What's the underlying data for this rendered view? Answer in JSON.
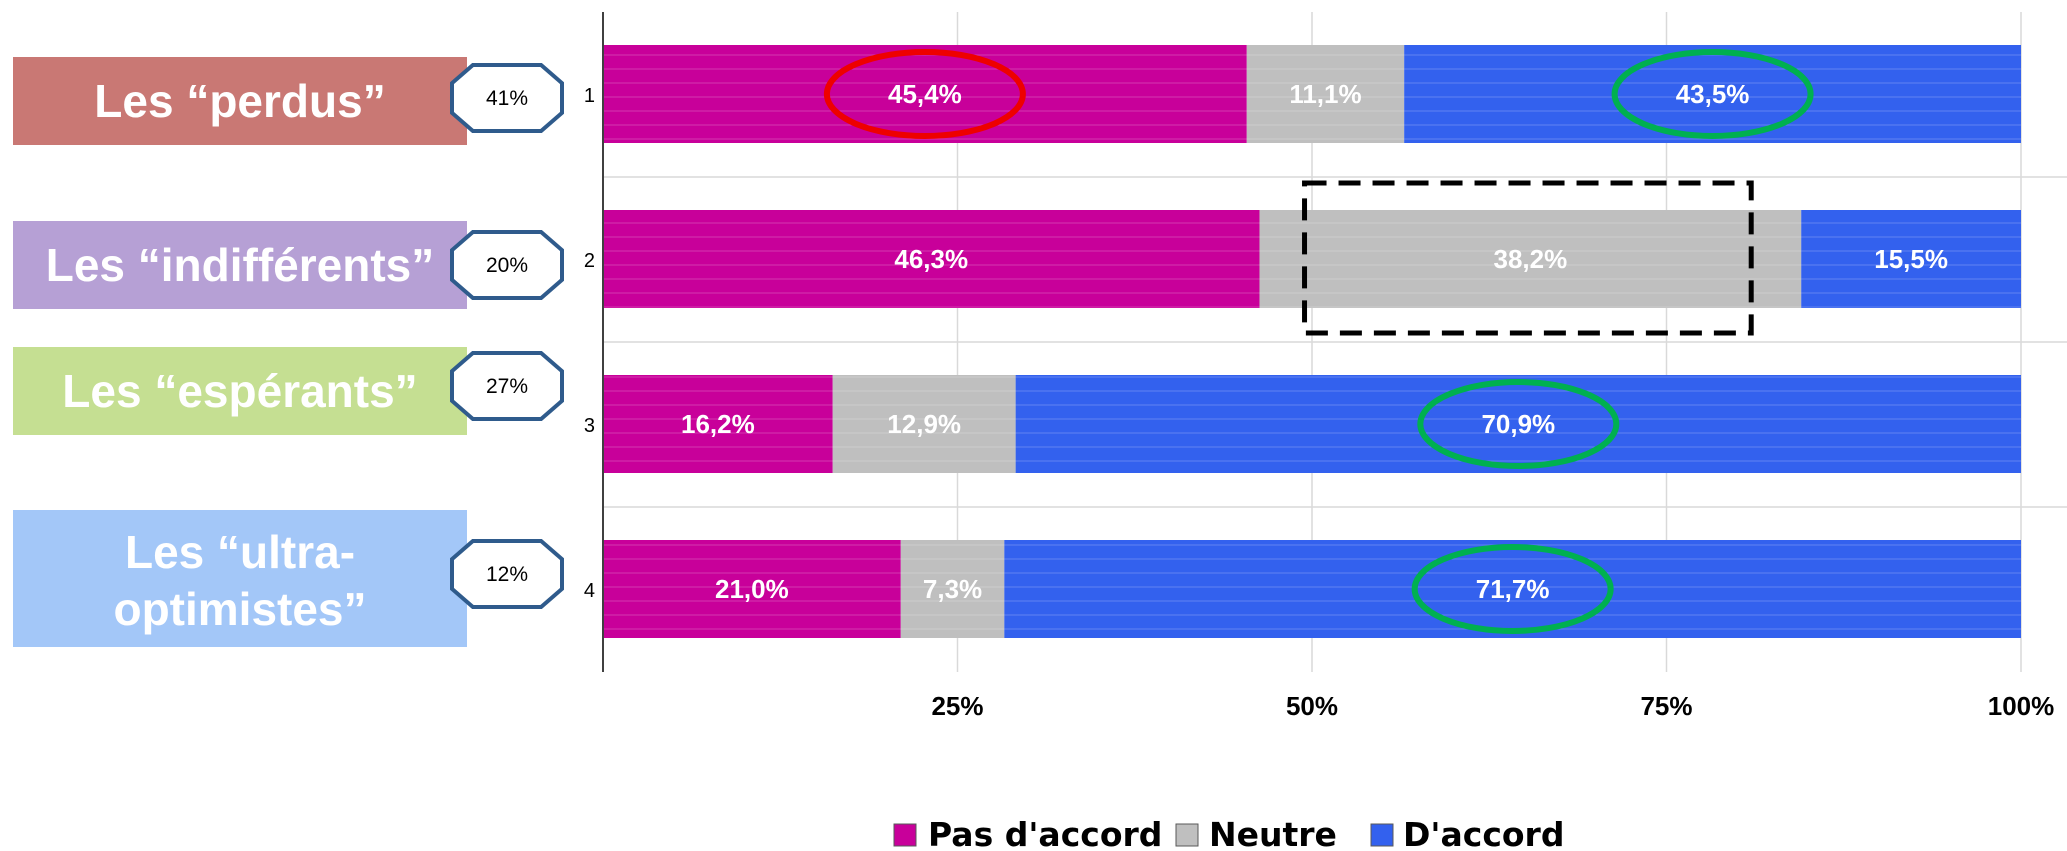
{
  "chart_data": {
    "type": "bar",
    "orientation": "horizontal",
    "stacked": "percent",
    "categories": [
      "1",
      "2",
      "3",
      "4"
    ],
    "series": [
      {
        "name": "Pas d'accord",
        "color": "#C8009A",
        "values": [
          45.4,
          46.3,
          16.2,
          21.0
        ],
        "labels": [
          "45,4%",
          "46,3%",
          "16,2%",
          "21,0%"
        ]
      },
      {
        "name": "Neutre",
        "color": "#BFBFBF",
        "values": [
          11.1,
          38.2,
          12.9,
          7.3
        ],
        "labels": [
          "11,1%",
          "38,2%",
          "12,9%",
          "7,3%"
        ]
      },
      {
        "name": "D'accord",
        "color": "#3361EE",
        "values": [
          43.5,
          15.5,
          70.9,
          71.7
        ],
        "labels": [
          "43,5%",
          "15,5%",
          "70,9%",
          "71,7%"
        ]
      }
    ],
    "xlim": [
      0,
      100
    ],
    "xticks": [
      {
        "value": 25,
        "label": "25%"
      },
      {
        "value": 50,
        "label": "50%"
      },
      {
        "value": 75,
        "label": "75%"
      },
      {
        "value": 100,
        "label": "100%"
      }
    ],
    "grid": true,
    "legend": "bottom-center",
    "groups": [
      {
        "line1": "Les “perdus”",
        "line2": "",
        "share": "41%",
        "color": "#C97874"
      },
      {
        "line1": "Les “indifférents”",
        "line2": "",
        "share": "20%",
        "color": "#B6A0D5"
      },
      {
        "line1": "Les “espérants”",
        "line2": "",
        "share": "27%",
        "color": "#C5DF92"
      },
      {
        "line1": "Les “ultra-",
        "line2": "optimistes”",
        "share": "12%",
        "color": "#A3C7F8"
      }
    ],
    "annotations": [
      {
        "type": "ellipse",
        "color": "#EE0000",
        "bar": 0,
        "series": 0
      },
      {
        "type": "ellipse",
        "color": "#00B050",
        "bar": 0,
        "series": 2
      },
      {
        "type": "dashed-box",
        "color": "#000000",
        "bar": 1,
        "series": 1
      },
      {
        "type": "ellipse",
        "color": "#00B050",
        "bar": 2,
        "series": 2
      },
      {
        "type": "ellipse",
        "color": "#00B050",
        "bar": 3,
        "series": 2
      }
    ]
  }
}
